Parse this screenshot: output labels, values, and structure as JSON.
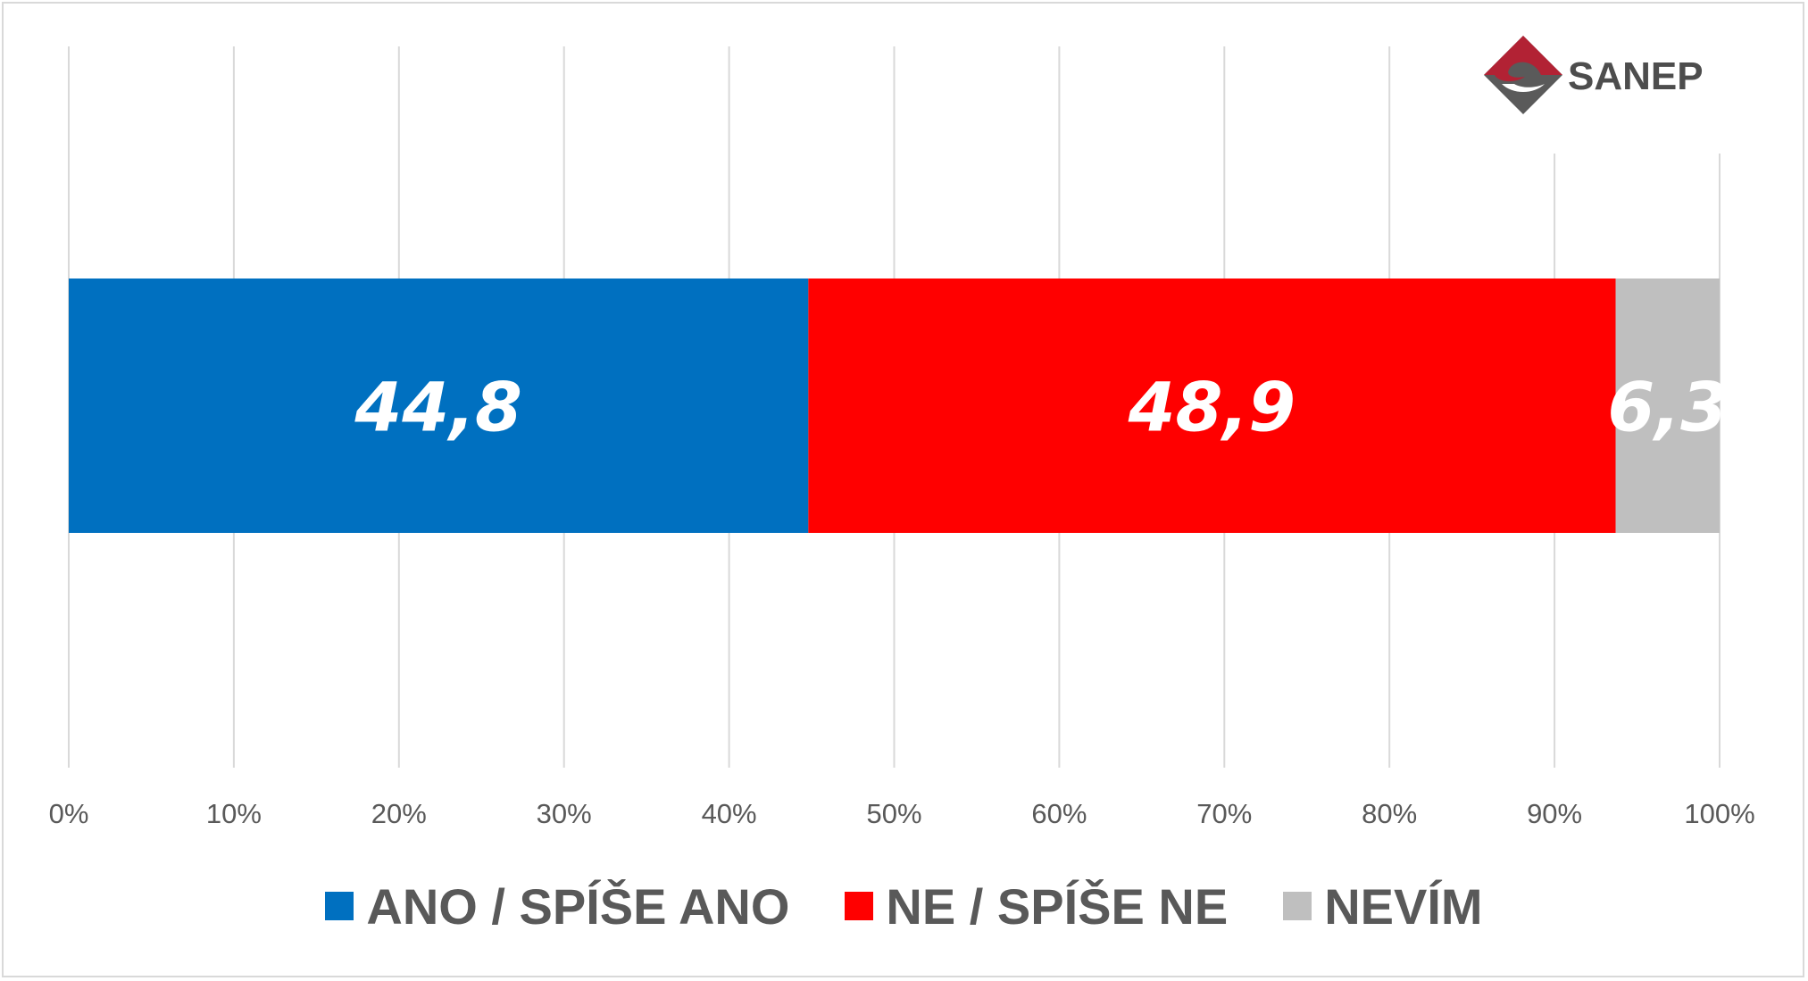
{
  "chart_data": {
    "type": "bar",
    "orientation": "horizontal",
    "stacked": "percent",
    "categories": [
      ""
    ],
    "series": [
      {
        "name": "ANO / SPÍŠE ANO",
        "values": [
          44.8
        ],
        "label": "44,8",
        "color": "#0070C0"
      },
      {
        "name": "NE / SPÍŠE NE",
        "values": [
          48.9
        ],
        "label": "48,9",
        "color": "#FF0000"
      },
      {
        "name": "NEVÍM",
        "values": [
          6.3
        ],
        "label": "6,3",
        "color": "#BFBFBF"
      }
    ],
    "xlim": [
      0,
      100
    ],
    "xticks": [
      "0%",
      "10%",
      "20%",
      "30%",
      "40%",
      "50%",
      "60%",
      "70%",
      "80%",
      "90%",
      "100%"
    ],
    "grid": true,
    "legend": "bottom",
    "title": "",
    "xlabel": "",
    "ylabel": ""
  },
  "logo": {
    "text": "SANEP",
    "colors": {
      "red": "#B22234",
      "gray": "#5A5A5A"
    }
  }
}
